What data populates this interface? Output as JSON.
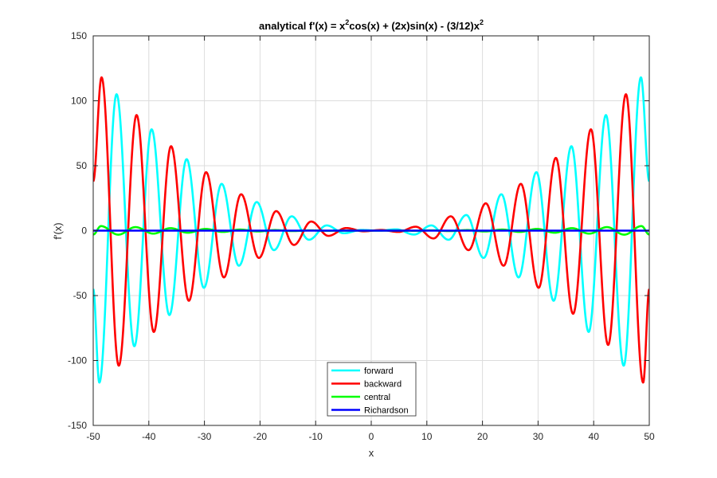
{
  "chart_data": {
    "type": "line",
    "title_parts": {
      "a": "analytical f'(x) = x",
      "sup1": "2",
      "b": "cos(x) + (2x)sin(x) - (3/12)x",
      "sup2": "2"
    },
    "xlabel": "x",
    "ylabel": "f'(x)",
    "xlim": [
      -50,
      50
    ],
    "ylim": [
      -150,
      150
    ],
    "xticks": [
      -50,
      -40,
      -30,
      -20,
      -10,
      0,
      10,
      20,
      30,
      40,
      50
    ],
    "yticks": [
      -150,
      -100,
      -50,
      0,
      50,
      100,
      150
    ],
    "grid": true,
    "legend_position": "bottom-center",
    "x_range": [
      -50,
      50
    ],
    "period": 6.28,
    "series": [
      {
        "name": "forward",
        "color": "#00ffff",
        "x": [
          -50,
          -48.9,
          -45.8,
          -42.6,
          -39.5,
          -36.3,
          -33.2,
          -30.1,
          -26.9,
          -23.8,
          -20.6,
          -17.5,
          -14.3,
          -11.2,
          -8.0,
          -4.9,
          -1.8,
          1.4,
          4.5,
          7.7,
          10.8,
          13.9,
          17.1,
          20.2,
          23.4,
          26.5,
          29.7,
          32.8,
          36.0,
          39.1,
          42.2,
          45.4,
          48.5,
          50
        ],
        "values": [
          -45,
          -117,
          105,
          -89,
          78,
          -65,
          55,
          -44,
          36,
          -27,
          22,
          -15,
          11,
          -7,
          4,
          -2,
          0.5,
          0,
          1,
          -3,
          4,
          -7,
          12,
          -21,
          28,
          -36,
          45,
          -54,
          65,
          -78,
          89,
          -104,
          118,
          38
        ]
      },
      {
        "name": "backward",
        "color": "#ff0000",
        "x": [
          -50,
          -48.5,
          -45.4,
          -42.2,
          -39.1,
          -36.0,
          -32.8,
          -29.7,
          -26.5,
          -23.4,
          -20.2,
          -17.1,
          -13.9,
          -10.8,
          -7.7,
          -4.5,
          -1.4,
          1.8,
          4.9,
          8.0,
          11.2,
          14.3,
          17.5,
          20.6,
          23.8,
          26.9,
          30.1,
          33.2,
          36.3,
          39.5,
          42.6,
          45.8,
          48.9,
          50
        ],
        "values": [
          38,
          118,
          -104,
          89,
          -78,
          65,
          -54,
          45,
          -36,
          28,
          -21,
          15,
          -11,
          7,
          -4,
          2,
          -0.5,
          0.5,
          -1,
          3,
          -6,
          11,
          -15,
          21,
          -27,
          36,
          -44,
          56,
          -64,
          78,
          -88,
          105,
          -117,
          -45
        ]
      },
      {
        "name": "central",
        "color": "#00ff00",
        "x": [
          -50,
          -48.6,
          -45.5,
          -42.4,
          -39.2,
          -36.1,
          -33.0,
          -29.8,
          -26.7,
          -23.6,
          -20.4,
          -17.3,
          -14.1,
          -11.0,
          -7.9,
          -4.7,
          -1.6,
          1.6,
          4.7,
          7.9,
          11.0,
          14.1,
          17.3,
          20.4,
          23.6,
          26.7,
          29.8,
          33.0,
          36.1,
          39.2,
          42.4,
          45.5,
          48.6,
          50
        ],
        "values": [
          -3,
          3.5,
          -3.1,
          2.7,
          -2.3,
          1.9,
          -1.6,
          1.3,
          -1.0,
          0.8,
          -0.6,
          0.4,
          -0.3,
          0.2,
          -0.1,
          0.05,
          0,
          0,
          0.05,
          -0.1,
          0.2,
          -0.3,
          0.4,
          -0.6,
          0.8,
          -1.0,
          1.3,
          -1.6,
          1.9,
          -2.3,
          2.7,
          -3.1,
          3.5,
          -3
        ]
      },
      {
        "name": "Richardson",
        "color": "#0000ff",
        "x": [
          -50,
          50
        ],
        "values": [
          0,
          0
        ]
      }
    ]
  }
}
